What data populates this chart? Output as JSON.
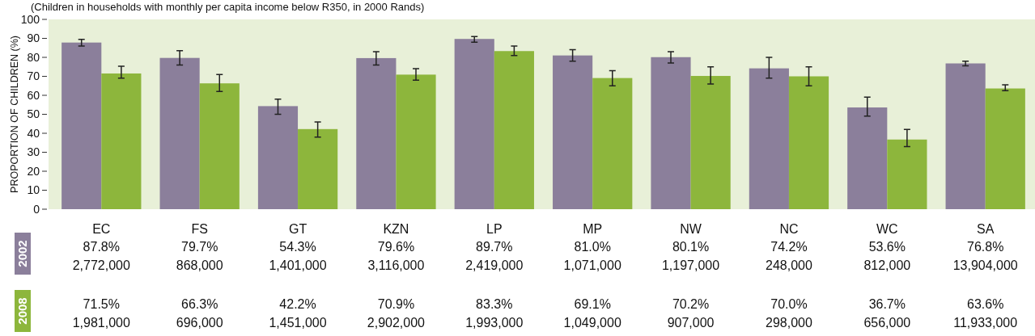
{
  "chart_data": {
    "type": "bar",
    "subtitle": "(Children in households with monthly per capita income below R350, in 2000 Rands)",
    "ylabel": "PROPORTION OF CHILDREN (%)",
    "categories": [
      "EC",
      "FS",
      "GT",
      "KZN",
      "LP",
      "MP",
      "NW",
      "NC",
      "WC",
      "SA"
    ],
    "series": [
      {
        "name": "2002",
        "color": "#8b7f9b",
        "values": [
          87.8,
          79.7,
          54.3,
          79.6,
          89.7,
          81.0,
          80.1,
          74.2,
          53.6,
          76.8
        ],
        "errors": [
          [
            86,
            89.5
          ],
          [
            76,
            83.5
          ],
          [
            50,
            58
          ],
          [
            76,
            83
          ],
          [
            88,
            91
          ],
          [
            78,
            84
          ],
          [
            77,
            83
          ],
          [
            69,
            80
          ],
          [
            49,
            59
          ],
          [
            75.5,
            78
          ]
        ],
        "value_labels": [
          "87.8%\n2,772,000",
          "79.7%\n868,000",
          "54.3%\n1,401,000",
          "79.6%\n3,116,000",
          "89.7%\n2,419,000",
          "81.0%\n1,071,000",
          "80.1%\n1,197,000",
          "74.2%\n248,000",
          "53.6%\n812,000",
          "76.8%\n13,904,000"
        ]
      },
      {
        "name": "2008",
        "color": "#8db63c",
        "values": [
          71.5,
          66.3,
          42.2,
          70.9,
          83.3,
          69.1,
          70.2,
          70.0,
          36.7,
          63.6
        ],
        "errors": [
          [
            69,
            75.3
          ],
          [
            62,
            71
          ],
          [
            38,
            46
          ],
          [
            68,
            74
          ],
          [
            81,
            86
          ],
          [
            65,
            73
          ],
          [
            66,
            75
          ],
          [
            65,
            75
          ],
          [
            33,
            42
          ],
          [
            62.5,
            65.5
          ]
        ],
        "value_labels": [
          "71.5%\n1,981,000",
          "66.3%\n696,000",
          "42.2%\n1,451,000",
          "70.9%\n2,902,000",
          "83.3%\n1,993,000",
          "69.1%\n1,049,000",
          "70.2%\n907,000",
          "70.0%\n298,000",
          "36.7%\n656,000",
          "63.6%\n11,933,000"
        ]
      }
    ],
    "ylim": [
      0,
      100
    ],
    "yticks": [
      0,
      10,
      20,
      30,
      40,
      50,
      60,
      70,
      80,
      90,
      100
    ],
    "grid": false,
    "legend": "bottom left"
  }
}
